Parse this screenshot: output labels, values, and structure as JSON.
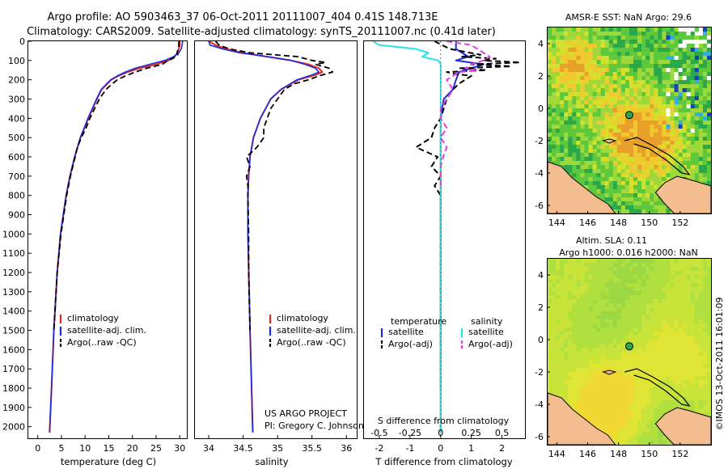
{
  "title": {
    "line1": "Argo profile: AO 5903463_37 06-Oct-2011 20111007_404 0.41S 148.713E",
    "line2": "Climatology: CARS2009. Satellite-adjusted climatology: synTS_20111007.nc (0.41d later)"
  },
  "colors": {
    "climatology": "#e8261c",
    "satellite": "#1d2be0",
    "argo": "#000000",
    "sat_salinity": "#27e4ec",
    "argo_salinity": "#e63de6",
    "land": "#f4bd8f"
  },
  "notes": {
    "project": "US ARGO PROJECT",
    "pi": "PI: Gregory C. Johnson",
    "s_diff_label": "S difference from climatology",
    "timestamp": "©IMOS 13-Oct-2011 16:01:09"
  },
  "chart_data": [
    {
      "type": "line",
      "panel": "temperature",
      "xlabel": "temperature (deg C)",
      "ylabel": "",
      "xlim": [
        -2,
        31.5
      ],
      "ylim": [
        2060,
        0
      ],
      "xticks": [
        0,
        5,
        10,
        15,
        20,
        25,
        30
      ],
      "yticks": [
        0,
        100,
        200,
        300,
        400,
        500,
        600,
        700,
        800,
        900,
        1000,
        1100,
        1200,
        1300,
        1400,
        1500,
        1600,
        1700,
        1800,
        1900,
        2000
      ],
      "legend": [
        "climatology",
        "satellite-adj. clim.",
        "Argo(..raw -QC)"
      ],
      "legend_position": "lower-center",
      "series": [
        {
          "name": "climatology",
          "depth": [
            0,
            20,
            40,
            60,
            80,
            100,
            120,
            140,
            160,
            180,
            200,
            250,
            300,
            400,
            500,
            600,
            700,
            800,
            900,
            1000,
            1200,
            1500,
            1800,
            2030
          ],
          "values": [
            30.0,
            30.0,
            29.8,
            29.5,
            28.9,
            27.6,
            25.0,
            21.5,
            19.0,
            17.0,
            15.5,
            13.5,
            12.5,
            10.7,
            9.0,
            7.8,
            6.8,
            6.0,
            5.4,
            4.8,
            4.1,
            3.4,
            2.9,
            2.5
          ]
        },
        {
          "name": "satellite-adj. clim.",
          "depth": [
            0,
            20,
            40,
            60,
            80,
            100,
            120,
            140,
            160,
            180,
            200,
            250,
            300,
            400,
            500,
            600,
            700,
            800,
            900,
            1000,
            1200,
            1500,
            1800,
            2030
          ],
          "values": [
            30.6,
            30.5,
            30.3,
            29.8,
            28.7,
            26.8,
            23.6,
            20.6,
            18.5,
            16.8,
            15.4,
            13.4,
            12.4,
            10.6,
            9.0,
            7.8,
            6.8,
            6.0,
            5.4,
            4.8,
            4.1,
            3.4,
            2.9,
            2.5
          ]
        },
        {
          "name": "Argo(..raw -QC)",
          "depth": [
            0,
            20,
            40,
            60,
            70,
            80,
            90,
            100,
            120,
            140,
            160,
            180,
            200,
            220,
            250,
            300,
            350,
            400,
            450,
            500,
            550,
            600,
            700,
            800,
            900,
            1000,
            1200,
            1500
          ],
          "values": [
            29.8,
            29.8,
            29.7,
            29.4,
            29.6,
            29.0,
            28.5,
            27.5,
            26.3,
            23.0,
            20.6,
            18.5,
            16.8,
            15.8,
            14.4,
            13.0,
            12.0,
            11.0,
            10.2,
            9.2,
            8.4,
            7.9,
            6.9,
            6.1,
            5.5,
            4.9,
            4.1,
            3.4
          ]
        }
      ]
    },
    {
      "type": "line",
      "panel": "salinity",
      "xlabel": "salinity",
      "xlim": [
        33.8,
        36.15
      ],
      "ylim": [
        2060,
        0
      ],
      "xticks": [
        34,
        34.5,
        35,
        35.5,
        36
      ],
      "legend": [
        "climatology",
        "satellite-adj. clim.",
        "Argo(..raw -QC)"
      ],
      "legend_position": "lower-right",
      "series": [
        {
          "name": "climatology",
          "depth": [
            0,
            20,
            40,
            60,
            80,
            100,
            120,
            140,
            160,
            175,
            200,
            250,
            300,
            400,
            500,
            600,
            700,
            800,
            1000,
            1500,
            2030
          ],
          "values": [
            34.0,
            34.1,
            34.25,
            34.5,
            34.85,
            35.2,
            35.45,
            35.6,
            35.65,
            35.55,
            35.3,
            35.05,
            34.9,
            34.75,
            34.65,
            34.6,
            34.58,
            34.57,
            34.57,
            34.6,
            34.64
          ]
        },
        {
          "name": "satellite-adj. clim.",
          "depth": [
            0,
            20,
            40,
            60,
            80,
            100,
            120,
            140,
            160,
            175,
            200,
            250,
            300,
            400,
            500,
            600,
            700,
            800,
            1000,
            1500,
            2030
          ],
          "values": [
            34.0,
            34.02,
            34.2,
            34.45,
            34.85,
            35.2,
            35.4,
            35.55,
            35.6,
            35.5,
            35.28,
            35.05,
            34.9,
            34.75,
            34.65,
            34.6,
            34.58,
            34.57,
            34.57,
            34.6,
            34.64
          ]
        },
        {
          "name": "Argo(..raw -QC)",
          "depth": [
            0,
            20,
            40,
            60,
            80,
            100,
            110,
            120,
            140,
            160,
            180,
            200,
            220,
            250,
            300,
            350,
            400,
            450,
            500,
            550,
            600,
            650,
            700,
            750,
            800,
            1000,
            1200,
            1500
          ],
          "values": [
            34.1,
            34.15,
            34.3,
            34.6,
            35.3,
            35.5,
            35.7,
            35.55,
            35.75,
            35.8,
            35.6,
            35.45,
            35.25,
            35.1,
            35.0,
            34.9,
            34.85,
            34.8,
            34.8,
            34.7,
            34.55,
            34.6,
            34.55,
            34.57,
            34.57,
            34.58,
            34.58,
            34.6
          ]
        }
      ]
    },
    {
      "type": "line",
      "panel": "difference",
      "xlabel": "T difference from climatology",
      "xlabel_top": "S difference from climatology",
      "xlim": [
        -2.5,
        2.75
      ],
      "ylim": [
        2060,
        0
      ],
      "xticks": [
        -2,
        -1,
        0,
        1,
        2
      ],
      "xticks_top": [
        -0.5,
        -0.25,
        0,
        0.25,
        0.5
      ],
      "legend_headers": [
        "temperature",
        "salinity"
      ],
      "legend": [
        "satellite",
        "Argo(-adj)",
        "satellite",
        "Argo(-adj)"
      ],
      "legend_position": "lower-center",
      "series": [
        {
          "name": "T satellite",
          "depth": [
            0,
            40,
            80,
            100,
            120,
            140,
            160,
            200,
            250,
            300,
            400,
            500,
            700,
            1000,
            1500,
            2030
          ],
          "values": [
            0.5,
            0.5,
            0.9,
            0.5,
            1.4,
            1.0,
            0.6,
            0.5,
            0.4,
            0.1,
            0.0,
            0.0,
            0.0,
            0.0,
            0.0,
            0.0
          ]
        },
        {
          "name": "T Argo(-adj)",
          "depth": [
            0,
            40,
            70,
            80,
            90,
            100,
            110,
            120,
            130,
            140,
            150,
            160,
            170,
            180,
            200,
            220,
            250,
            300,
            350,
            400,
            450,
            500,
            550,
            600,
            650,
            700,
            750,
            800,
            900,
            1000,
            1200,
            1500,
            1800
          ],
          "values": [
            -0.2,
            0.3,
            1.3,
            0.7,
            1.8,
            1.4,
            2.6,
            1.0,
            2.3,
            0.6,
            1.5,
            0.2,
            0.5,
            1.0,
            0.8,
            0.6,
            0.4,
            0.2,
            0.1,
            0.0,
            -0.2,
            -0.3,
            -0.8,
            -0.1,
            -0.3,
            0.0,
            -0.2,
            0.0,
            0.0,
            0.0,
            0.0,
            0.0,
            0.0
          ]
        },
        {
          "name": "S satellite",
          "depth": [
            0,
            20,
            40,
            60,
            80,
            100,
            120,
            140,
            160,
            180,
            200,
            250,
            300,
            350,
            400,
            500,
            700,
            1000,
            1500,
            2030
          ],
          "values": [
            -0.55,
            -0.5,
            -0.2,
            -0.1,
            -0.15,
            -0.02,
            0.0,
            0.0,
            0.0,
            0.0,
            0.0,
            0.0,
            0.0,
            0.0,
            0.0,
            0.0,
            0.0,
            0.0,
            0.0,
            0.0
          ]
        },
        {
          "name": "S Argo(-adj)",
          "depth": [
            0,
            20,
            40,
            60,
            80,
            100,
            120,
            140,
            150,
            160,
            200,
            250,
            300,
            350,
            400,
            450,
            500,
            550,
            600,
            650,
            700,
            750
          ],
          "values": [
            0.05,
            0.25,
            0.3,
            0.35,
            0.4,
            0.35,
            0.25,
            0.2,
            0.3,
            0.15,
            0.05,
            0.1,
            0.05,
            0.0,
            0.0,
            0.05,
            0.0,
            0.05,
            0.02,
            0.0,
            0.0,
            0.0
          ]
        }
      ]
    },
    {
      "type": "heatmap",
      "panel": "sst-map",
      "title": "AMSR-E SST: NaN Argo: 29.6",
      "xlim": [
        143.4,
        154.0
      ],
      "ylim": [
        -6.5,
        5.0
      ],
      "xticks": [
        144,
        146,
        148,
        150,
        152
      ],
      "yticks": [
        4,
        2,
        0,
        -2,
        -4,
        -6
      ],
      "float_position": [
        148.7,
        -0.41
      ]
    },
    {
      "type": "heatmap",
      "panel": "sla-map",
      "title": "Altim. SLA: 0.11",
      "subtitle": "Argo h1000: 0.016 h2000: NaN",
      "xlim": [
        143.4,
        154.0
      ],
      "ylim": [
        -6.5,
        5.0
      ],
      "xticks": [
        144,
        146,
        148,
        150,
        152
      ],
      "yticks": [
        4,
        2,
        0,
        -2,
        -4,
        -6
      ],
      "float_position": [
        148.7,
        -0.41
      ]
    }
  ]
}
